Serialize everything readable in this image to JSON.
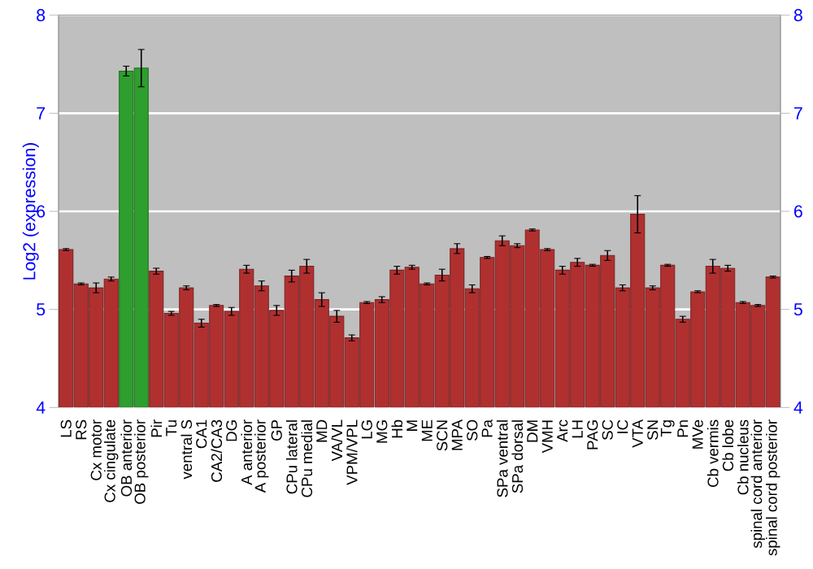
{
  "chart_data": {
    "type": "bar",
    "ylabel": "Log2 (expression)",
    "categories": [
      "LS",
      "RS",
      "Cx motor",
      "Cx cingulate",
      "OB anterior",
      "OB posterior",
      "Pir",
      "Tu",
      "ventral S",
      "CA1",
      "CA2/CA3",
      "DG",
      "A anterior",
      "A posterior",
      "GP",
      "CPu lateral",
      "CPu medial",
      "MD",
      "VA/VL",
      "VPM/VPL",
      "LG",
      "MG",
      "Hb",
      "M",
      "ME",
      "SCN",
      "MPA",
      "SO",
      "Pa",
      "SPa ventral",
      "SPa dorsal",
      "DM",
      "VMH",
      "Arc",
      "LH",
      "PAG",
      "SC",
      "IC",
      "VTA",
      "SN",
      "Tg",
      "Pn",
      "MVe",
      "Cb vermis",
      "Cb lobe",
      "Cb nucleus",
      "spinal cord anterior",
      "spinal cord posterior"
    ],
    "values": [
      5.61,
      5.26,
      5.22,
      5.31,
      7.43,
      7.46,
      5.39,
      4.96,
      5.22,
      4.86,
      5.04,
      4.98,
      5.41,
      5.24,
      4.99,
      5.34,
      5.44,
      5.1,
      4.93,
      4.71,
      5.07,
      5.1,
      5.4,
      5.43,
      5.26,
      5.35,
      5.62,
      5.21,
      5.53,
      5.7,
      5.65,
      5.81,
      5.61,
      5.4,
      5.48,
      5.45,
      5.55,
      5.22,
      5.97,
      5.22,
      5.45,
      4.9,
      5.18,
      5.44,
      5.42,
      5.07,
      5.04,
      5.33
    ],
    "errors": [
      0.01,
      0.01,
      0.05,
      0.02,
      0.05,
      0.19,
      0.03,
      0.02,
      0.02,
      0.04,
      0.01,
      0.04,
      0.04,
      0.05,
      0.05,
      0.06,
      0.07,
      0.07,
      0.06,
      0.03,
      0.01,
      0.03,
      0.04,
      0.02,
      0.01,
      0.06,
      0.05,
      0.04,
      0.01,
      0.05,
      0.02,
      0.01,
      0.01,
      0.04,
      0.04,
      0.01,
      0.05,
      0.03,
      0.19,
      0.02,
      0.01,
      0.03,
      0.01,
      0.07,
      0.03,
      0.01,
      0.01,
      0.01
    ],
    "colors": [
      "#b03030",
      "#b03030",
      "#b03030",
      "#b03030",
      "#2e9e2e",
      "#2e9e2e",
      "#b03030",
      "#b03030",
      "#b03030",
      "#b03030",
      "#b03030",
      "#b03030",
      "#b03030",
      "#b03030",
      "#b03030",
      "#b03030",
      "#b03030",
      "#b03030",
      "#b03030",
      "#b03030",
      "#b03030",
      "#b03030",
      "#b03030",
      "#b03030",
      "#b03030",
      "#b03030",
      "#b03030",
      "#b03030",
      "#b03030",
      "#b03030",
      "#b03030",
      "#b03030",
      "#b03030",
      "#b03030",
      "#b03030",
      "#b03030",
      "#b03030",
      "#b03030",
      "#b03030",
      "#b03030",
      "#b03030",
      "#b03030",
      "#b03030",
      "#b03030",
      "#b03030",
      "#b03030",
      "#b03030",
      "#b03030"
    ],
    "ylim": [
      4,
      8
    ],
    "yticks": [
      4,
      5,
      6,
      7,
      8
    ],
    "y2lim": [
      4,
      8
    ],
    "y2ticks": [
      4,
      5,
      6,
      7,
      8
    ],
    "grid": "y"
  }
}
